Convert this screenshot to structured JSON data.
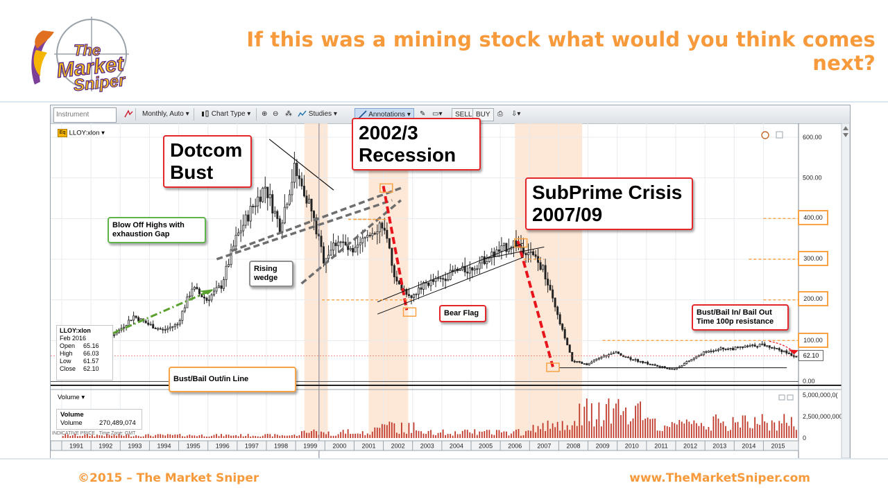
{
  "slide": {
    "title": "If this was a mining stock what would you think comes next?",
    "footer_left": "©2015 – The Market Sniper",
    "footer_right": "www.TheMarketSniper.com",
    "logo": {
      "line1": "The",
      "line2": "Market",
      "line3": "Sniper"
    }
  },
  "toolbar": {
    "instrument_placeholder": "Instrument",
    "period": "Monthly, Auto",
    "chart_type": "Chart Type",
    "studies": "Studies",
    "annotations": "Annotations",
    "sell": "SELL",
    "buy": "BUY"
  },
  "panels": {
    "price_label": "LLOY:xlon",
    "volume_label": "Volume",
    "indicative": "INDICATIVE PRICE , Time Zone: GMT"
  },
  "info_box": {
    "symbol": "LLOY:xlon",
    "date": "Feb 2016",
    "rows": [
      {
        "k": "Open",
        "v": "65.16"
      },
      {
        "k": "High",
        "v": "66.03"
      },
      {
        "k": "Low",
        "v": "61.57"
      },
      {
        "k": "Close",
        "v": "62.10"
      }
    ]
  },
  "volume_box": {
    "title": "Volume",
    "key": "Volume",
    "value": "270,489,074"
  },
  "annotations": {
    "dotcom": "Dotcom Bust",
    "recession": "2002/3 Recession",
    "subprime": "SubPrime Crisis 2007/09",
    "blowoff": "Blow Off Highs with exhaustion Gap",
    "wedge": "Rising wedge",
    "bearflag": "Bear Flag",
    "bailin": "Bust/Bail In/ Bail Out Time 100p resistance",
    "bailout_line": "Bust/Bail Out/in Line"
  },
  "highlight_prices": [
    "400.00",
    "300.00",
    "200.00",
    "100.00"
  ],
  "last_price": "62.10",
  "colors": {
    "accent": "#f79a3c",
    "candle": "#222222",
    "volume": "#c0392b",
    "shade": "#fde3cf",
    "trend_red": "#e8141b",
    "trend_green": "#5aa02c"
  },
  "chart_data": {
    "type": "line",
    "title": "",
    "x_axis": {
      "labels": [
        "1991",
        "1992",
        "1993",
        "1994",
        "1995",
        "1996",
        "1997",
        "1998",
        "1999",
        "2000",
        "2001",
        "2002",
        "2003",
        "2004",
        "2005",
        "2006",
        "2007",
        "2008",
        "2009",
        "2010",
        "2011",
        "2012",
        "2013",
        "2014",
        "2015"
      ]
    },
    "y_axis": {
      "labels": [
        "0.00",
        "100.00",
        "200.00",
        "300.00",
        "400.00",
        "500.00",
        "600.00"
      ],
      "range": [
        0,
        600
      ]
    },
    "volume_axis": {
      "labels": [
        "5,000,000,0(",
        "2,500,000,000",
        "0"
      ],
      "range": [
        0,
        5000000000
      ]
    },
    "series": [
      {
        "x": [
          1991.0,
          1991.5,
          1992.0,
          1992.5,
          1993.0,
          1993.5,
          1994.0,
          1994.5,
          1995.0,
          1995.5,
          1996.0,
          1996.5,
          1997.0,
          1997.5,
          1998.0,
          1998.5,
          1999.0,
          1999.5,
          2000.0,
          2000.5,
          2001.0,
          2001.5,
          2002.0,
          2002.5,
          2003.0,
          2003.5,
          2004.0,
          2004.5,
          2005.0,
          2005.5,
          2006.0,
          2006.5,
          2007.0,
          2007.5,
          2008.0,
          2008.5,
          2009.0,
          2009.5,
          2010.0,
          2010.5,
          2011.0,
          2011.5,
          2012.0,
          2012.5,
          2013.0,
          2013.5,
          2014.0,
          2014.5,
          2015.0,
          2015.5,
          2016.1
        ],
        "y": [
          50,
          70,
          85,
          100,
          125,
          160,
          140,
          125,
          140,
          230,
          200,
          235,
          350,
          420,
          480,
          380,
          520,
          440,
          300,
          350,
          310,
          360,
          390,
          240,
          210,
          240,
          250,
          270,
          275,
          300,
          320,
          340,
          320,
          275,
          160,
          50,
          40,
          60,
          70,
          55,
          45,
          35,
          30,
          50,
          70,
          80,
          80,
          85,
          90,
          80,
          62
        ]
      }
    ],
    "shaded_periods": [
      [
        1999.3,
        2000.1
      ],
      [
        2001.5,
        2002.85
      ],
      [
        2006.5,
        2008.8
      ]
    ],
    "legend": "none",
    "grid": true
  }
}
